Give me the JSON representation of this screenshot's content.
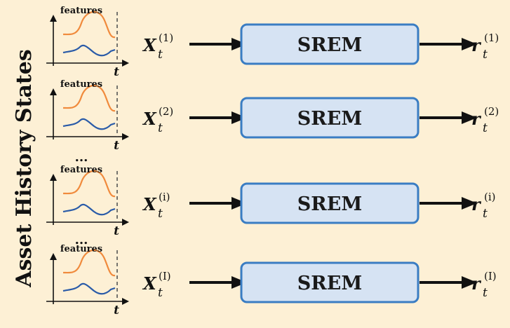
{
  "side_label": "Asset History States",
  "rows": [
    {
      "features_label": "features",
      "time_label": "t",
      "input_symbol": "X",
      "input_sub": "t",
      "input_sup": "(1)",
      "module_label": "SREM",
      "output_symbol": "r",
      "output_sub": "t",
      "output_sup": "(1)"
    },
    {
      "features_label": "features",
      "time_label": "t",
      "input_symbol": "X",
      "input_sub": "t",
      "input_sup": "(2)",
      "module_label": "SREM",
      "output_symbol": "r",
      "output_sub": "t",
      "output_sup": "(2)"
    },
    {
      "features_label": "features",
      "time_label": "t",
      "input_symbol": "X",
      "input_sub": "t",
      "input_sup": "(i)",
      "module_label": "SREM",
      "output_symbol": "r",
      "output_sub": "t",
      "output_sup": "(i)"
    },
    {
      "features_label": "features",
      "time_label": "t",
      "input_symbol": "X",
      "input_sub": "t",
      "input_sup": "(I)",
      "module_label": "SREM",
      "output_symbol": "r",
      "output_sub": "t",
      "output_sup": "(I)"
    }
  ],
  "ellipsis": [
    "...",
    "..."
  ],
  "colors": {
    "background": "#fdf0d5",
    "box_fill": "#d6e3f3",
    "box_stroke": "#3a7dc3",
    "orange_curve": "#f08a3c",
    "blue_curve": "#2a5ba8",
    "arrow": "#111111"
  }
}
